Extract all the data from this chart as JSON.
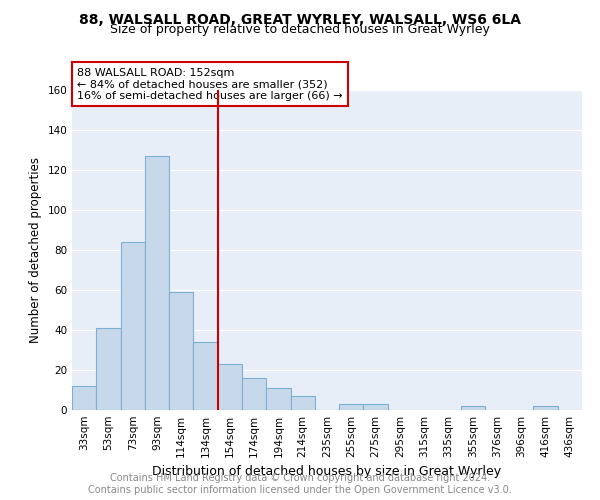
{
  "title": "88, WALSALL ROAD, GREAT WYRLEY, WALSALL, WS6 6LA",
  "subtitle": "Size of property relative to detached houses in Great Wyrley",
  "xlabel": "Distribution of detached houses by size in Great Wyrley",
  "ylabel": "Number of detached properties",
  "bin_labels": [
    "33sqm",
    "53sqm",
    "73sqm",
    "93sqm",
    "114sqm",
    "134sqm",
    "154sqm",
    "174sqm",
    "194sqm",
    "214sqm",
    "235sqm",
    "255sqm",
    "275sqm",
    "295sqm",
    "315sqm",
    "335sqm",
    "355sqm",
    "376sqm",
    "396sqm",
    "416sqm",
    "436sqm"
  ],
  "bar_heights": [
    12,
    41,
    84,
    127,
    59,
    34,
    23,
    16,
    11,
    7,
    0,
    3,
    3,
    0,
    0,
    0,
    2,
    0,
    0,
    2,
    0
  ],
  "bar_color": "#c8d8eb",
  "bar_edge_color": "#7bafd4",
  "vline_x": 6,
  "vline_color": "#cc0000",
  "annotation_line1": "88 WALSALL ROAD: 152sqm",
  "annotation_line2": "← 84% of detached houses are smaller (352)",
  "annotation_line3": "16% of semi-detached houses are larger (66) →",
  "annotation_box_color": "#ffffff",
  "annotation_box_edge_color": "#cc0000",
  "ylim": [
    0,
    160
  ],
  "yticks": [
    0,
    20,
    40,
    60,
    80,
    100,
    120,
    140,
    160
  ],
  "background_color": "#e8eef8",
  "grid_color": "#ffffff",
  "footer_line1": "Contains HM Land Registry data © Crown copyright and database right 2024.",
  "footer_line2": "Contains public sector information licensed under the Open Government Licence v3.0.",
  "title_fontsize": 10,
  "subtitle_fontsize": 9,
  "xlabel_fontsize": 9,
  "ylabel_fontsize": 8.5,
  "tick_fontsize": 7.5,
  "annotation_fontsize": 8,
  "footer_fontsize": 7
}
